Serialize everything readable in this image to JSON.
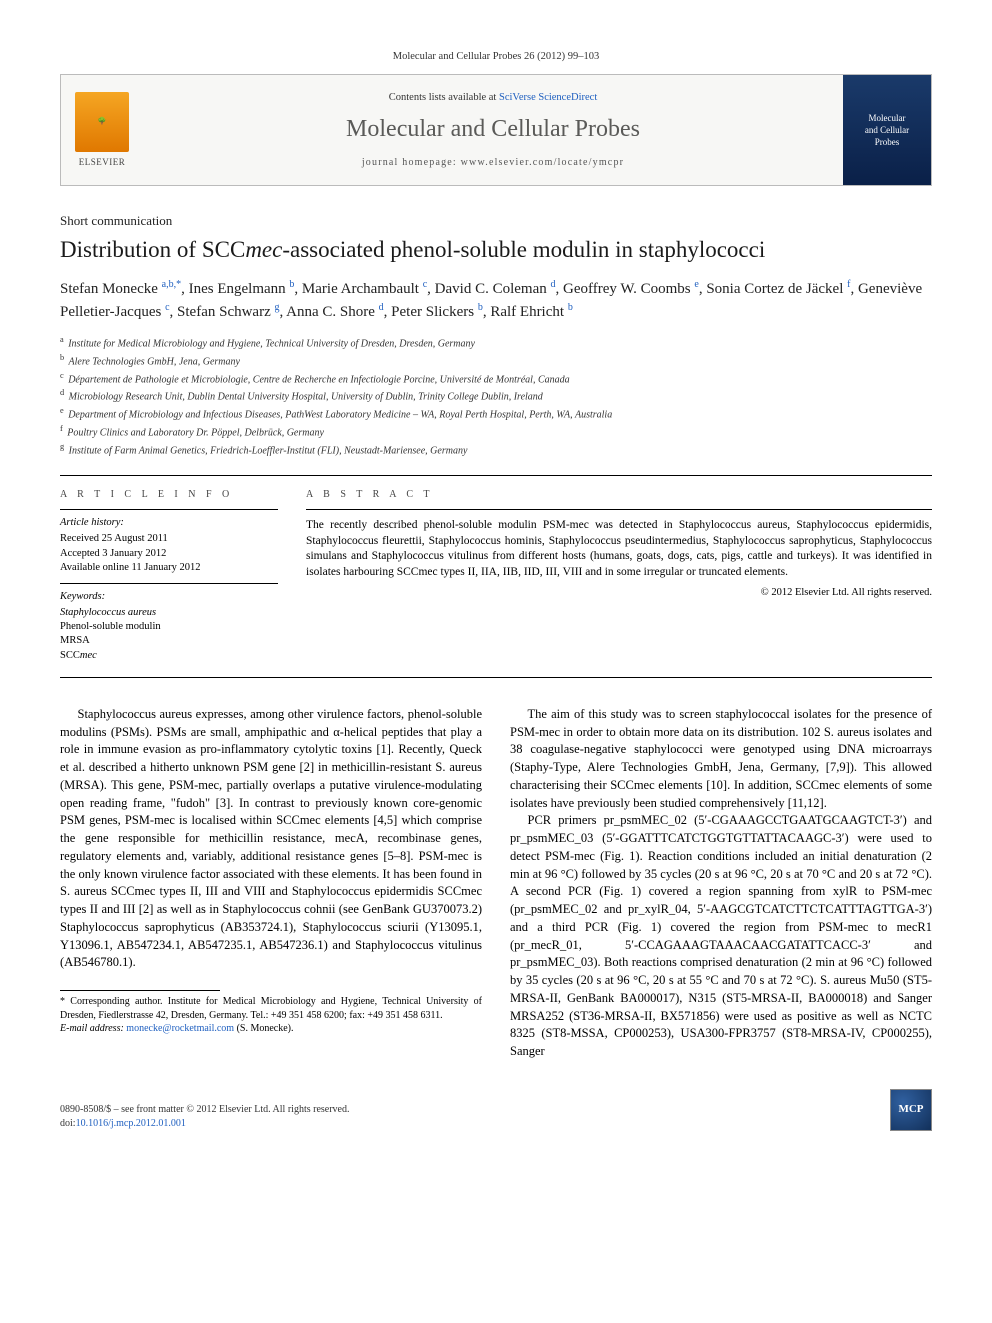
{
  "header_ref": "Molecular and Cellular Probes 26 (2012) 99–103",
  "banner": {
    "contents_prefix": "Contents lists available at ",
    "contents_link": "SciVerse ScienceDirect",
    "journal_name": "Molecular and Cellular Probes",
    "homepage_label": "journal homepage: ",
    "homepage_url": "www.elsevier.com/locate/ymcpr",
    "elsevier_text": "ELSEVIER",
    "cover_title1": "Molecular",
    "cover_title2": "and Cellular",
    "cover_title3": "Probes"
  },
  "article_type": "Short communication",
  "title": "Distribution of SCCmec-associated phenol-soluble modulin in staphylococci",
  "authors_html": "Stefan Monecke <sup>a,b,*</sup>, Ines Engelmann <sup>b</sup>, Marie Archambault <sup>c</sup>, David C. Coleman <sup>d</sup>, Geoffrey W. Coombs <sup>e</sup>, Sonia Cortez de Jäckel <sup>f</sup>, Geneviève Pelletier-Jacques <sup>c</sup>, Stefan Schwarz <sup>g</sup>, Anna C. Shore <sup>d</sup>, Peter Slickers <sup>b</sup>, Ralf Ehricht <sup>b</sup>",
  "affiliations": [
    "a Institute for Medical Microbiology and Hygiene, Technical University of Dresden, Dresden, Germany",
    "b Alere Technologies GmbH, Jena, Germany",
    "c Département de Pathologie et Microbiologie, Centre de Recherche en Infectiologie Porcine, Université de Montréal, Canada",
    "d Microbiology Research Unit, Dublin Dental University Hospital, University of Dublin, Trinity College Dublin, Ireland",
    "e Department of Microbiology and Infectious Diseases, PathWest Laboratory Medicine – WA, Royal Perth Hospital, Perth, WA, Australia",
    "f Poultry Clinics and Laboratory Dr. Pöppel, Delbrück, Germany",
    "g Institute of Farm Animal Genetics, Friedrich-Loeffler-Institut (FLI), Neustadt-Mariensee, Germany"
  ],
  "article_info": {
    "heading": "A R T I C L E   I N F O",
    "history_head": "Article history:",
    "received": "Received 25 August 2011",
    "accepted": "Accepted 3 January 2012",
    "online": "Available online 11 January 2012",
    "keywords_head": "Keywords:",
    "keywords": [
      "Staphylococcus aureus",
      "Phenol-soluble modulin",
      "MRSA",
      "SCCmec"
    ]
  },
  "abstract": {
    "heading": "A B S T R A C T",
    "text": "The recently described phenol-soluble modulin PSM-mec was detected in Staphylococcus aureus, Staphylococcus epidermidis, Staphylococcus fleurettii, Staphylococcus hominis, Staphylococcus pseudintermedius, Staphylococcus saprophyticus, Staphylococcus simulans and Staphylococcus vitulinus from different hosts (humans, goats, dogs, cats, pigs, cattle and turkeys). It was identified in isolates harbouring SCCmec types II, IIA, IIB, IID, III, VIII and in some irregular or truncated elements.",
    "copyright": "© 2012 Elsevier Ltd. All rights reserved."
  },
  "body": {
    "p1": "Staphylococcus aureus expresses, among other virulence factors, phenol-soluble modulins (PSMs). PSMs are small, amphipathic and α-helical peptides that play a role in immune evasion as pro-inflammatory cytolytic toxins [1]. Recently, Queck et al. described a hitherto unknown PSM gene [2] in methicillin-resistant S. aureus (MRSA). This gene, PSM-mec, partially overlaps a putative virulence-modulating open reading frame, \"fudoh\" [3]. In contrast to previously known core-genomic PSM genes, PSM-mec is localised within SCCmec elements [4,5] which comprise the gene responsible for methicillin resistance, mecA, recombinase genes, regulatory elements and, variably, additional resistance genes [5–8]. PSM-mec is the only known virulence factor associated with these elements. It has been found in S. aureus SCCmec types II, III and VIII and Staphylococcus epidermidis SCCmec types II and III [2] as well as in Staphylococcus cohnii (see GenBank GU370073.2) Staphylococcus saprophyticus (AB353724.1), Staphylococcus sciurii (Y13095.1, Y13096.1, AB547234.1, AB547235.1, AB547236.1) and Staphylococcus vitulinus (AB546780.1).",
    "p2": "The aim of this study was to screen staphylococcal isolates for the presence of PSM-mec in order to obtain more data on its distribution. 102 S. aureus isolates and 38 coagulase-negative staphylococci were genotyped using DNA microarrays (Staphy-Type, Alere Technologies GmbH, Jena, Germany, [7,9]). This allowed characterising their SCCmec elements [10]. In addition, SCCmec elements of some isolates have previously been studied comprehensively [11,12].",
    "p3": "PCR primers pr_psmMEC_02 (5′-CGAAAGCCTGAATGCAAGTCT-3′) and pr_psmMEC_03 (5′-GGATTTCATCTGGTGTTATTACAAGC-3′) were used to detect PSM-mec (Fig. 1). Reaction conditions included an initial denaturation (2 min at 96 °C) followed by 35 cycles (20 s at 96 °C, 20 s at 70 °C and 20 s at 72 °C). A second PCR (Fig. 1) covered a region spanning from xylR to PSM-mec (pr_psmMEC_02 and pr_xylR_04, 5′-AAGCGTCATCTTCTCATTTAGTTGA-3′) and a third PCR (Fig. 1) covered the region from PSM-mec to mecR1 (pr_mecR_01, 5′-CCAGAAAGTAAACAACGATATTCACC-3′ and pr_psmMEC_03). Both reactions comprised denaturation (2 min at 96 °C) followed by 35 cycles (20 s at 96 °C, 20 s at 55 °C and 70 s at 72 °C). S. aureus Mu50 (ST5-MRSA-II, GenBank BA000017), N315 (ST5-MRSA-II, BA000018) and Sanger MRSA252 (ST36-MRSA-II, BX571856) were used as positive as well as NCTC 8325 (ST8-MSSA, CP000253), USA300-FPR3757 (ST8-MRSA-IV, CP000255), Sanger"
  },
  "footnotes": {
    "corr": "* Corresponding author. Institute for Medical Microbiology and Hygiene, Technical University of Dresden, Fiedlerstrasse 42, Dresden, Germany. Tel.: +49 351 458 6200; fax: +49 351 458 6311.",
    "email_label": "E-mail address: ",
    "email": "monecke@rocketmail.com",
    "email_suffix": " (S. Monecke)."
  },
  "bottom": {
    "line1": "0890-8508/$ – see front matter © 2012 Elsevier Ltd. All rights reserved.",
    "doi_label": "doi:",
    "doi": "10.1016/j.mcp.2012.01.001",
    "logo": "MCP"
  },
  "colors": {
    "link": "#2060c0",
    "text": "#000000",
    "banner_bg": "#f7f7f5",
    "cover_bg": "#12305a"
  }
}
